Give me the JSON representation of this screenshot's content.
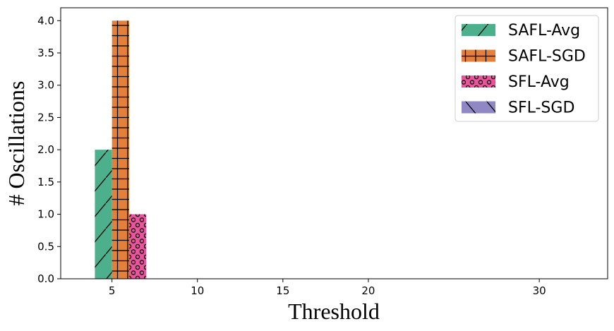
{
  "chart_data": {
    "type": "bar",
    "xlabel": "Threshold",
    "ylabel": "# Oscillations",
    "xlim": [
      2,
      34
    ],
    "ylim": [
      0,
      4.2
    ],
    "x_ticks": [
      5,
      10,
      15,
      20,
      30
    ],
    "y_ticks": [
      "0.0",
      "0.5",
      "1.0",
      "1.5",
      "2.0",
      "2.5",
      "3.0",
      "3.5",
      "4.0"
    ],
    "grid": false,
    "legend_position": "top-right",
    "series": [
      {
        "name": "SAFL-Avg",
        "color": "#4cb08c",
        "hatch": "diagonal",
        "x": [
          4.5
        ],
        "values": [
          2
        ]
      },
      {
        "name": "SAFL-SGD",
        "color": "#e5803a",
        "hatch": "grid",
        "x": [
          5.5
        ],
        "values": [
          4
        ]
      },
      {
        "name": "SFL-Avg",
        "color": "#e8559c",
        "hatch": "circles",
        "x": [
          6.5
        ],
        "values": [
          1
        ]
      },
      {
        "name": "SFL-SGD",
        "color": "#8f88c4",
        "hatch": "backslash",
        "x": [
          7.5
        ],
        "values": [
          0
        ]
      }
    ]
  }
}
